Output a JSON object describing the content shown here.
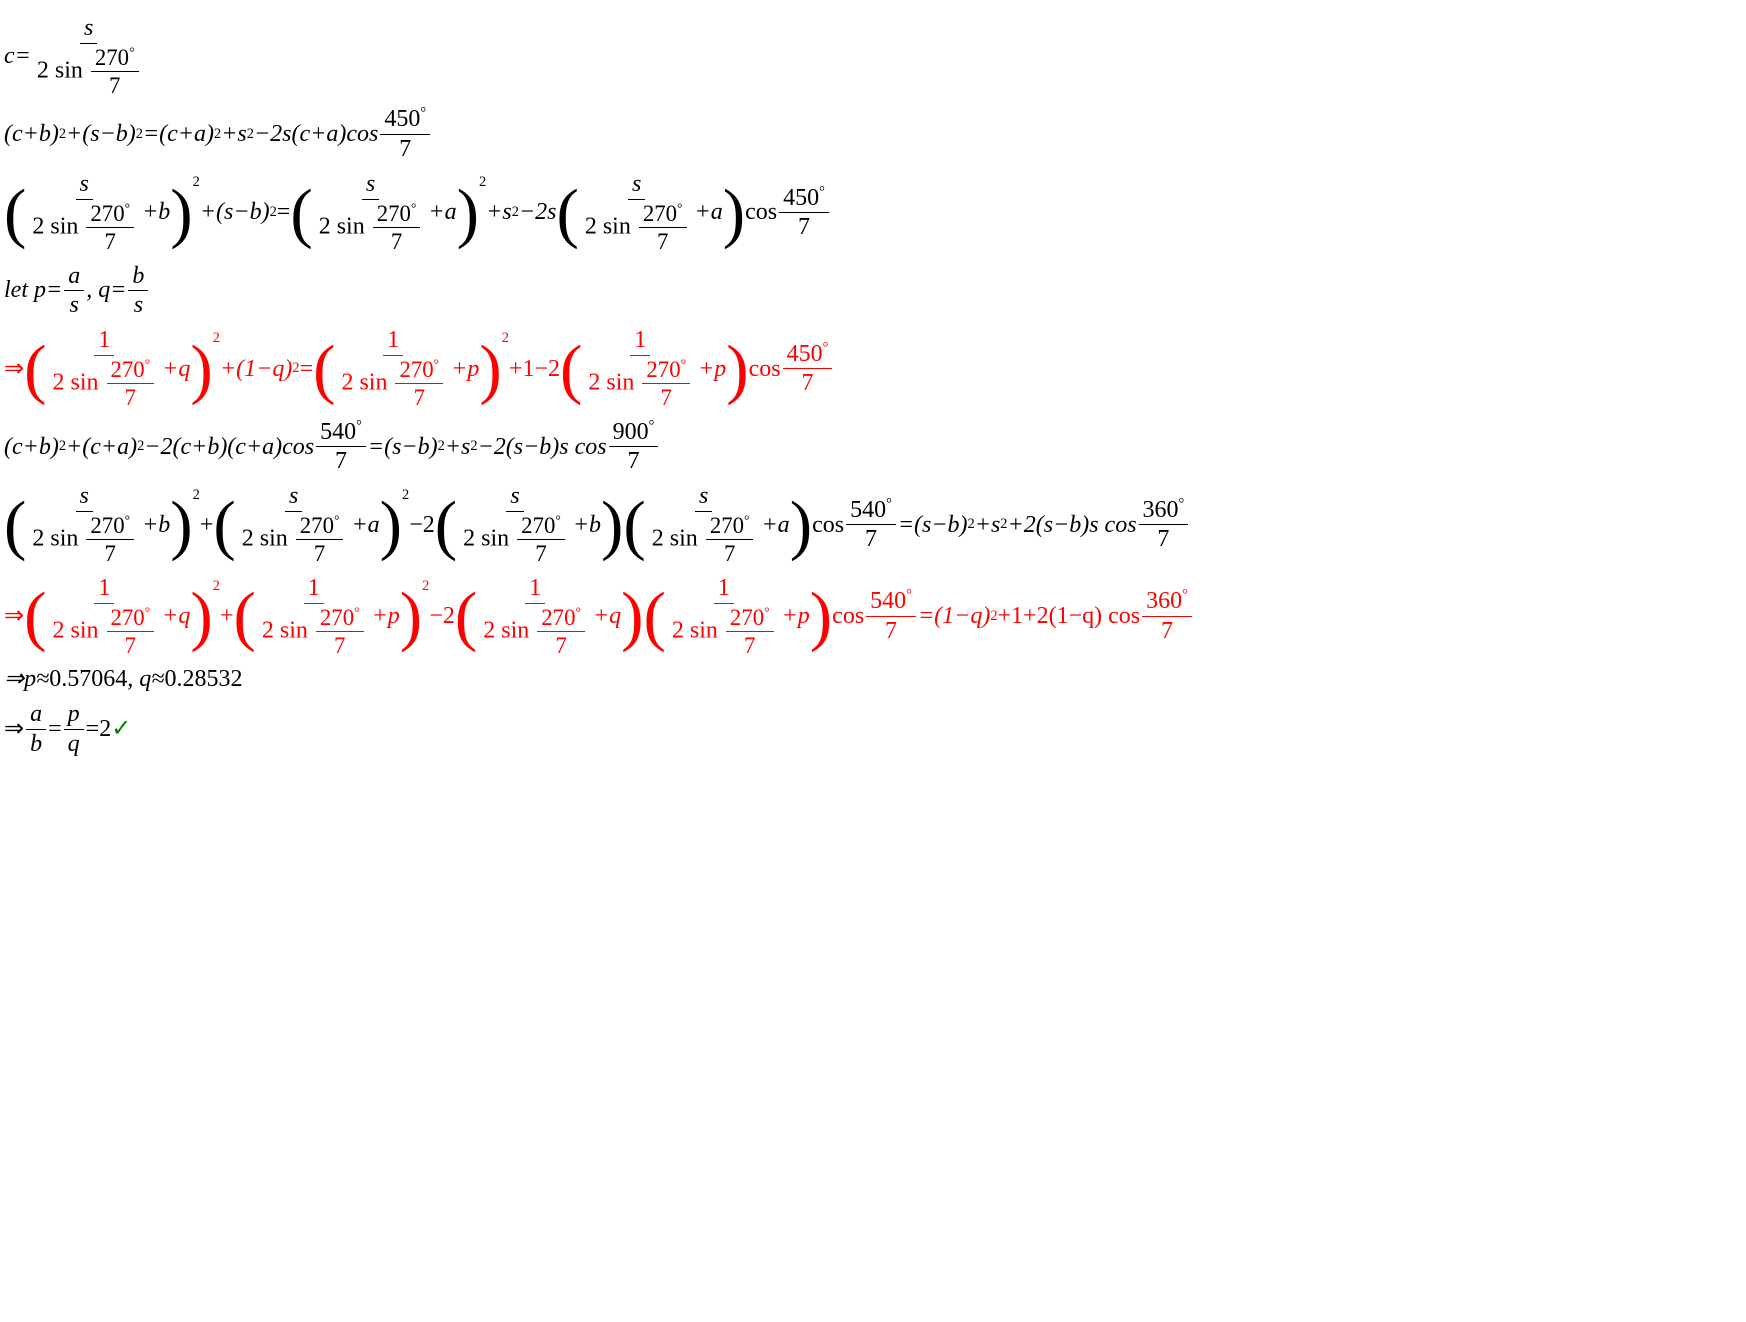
{
  "colors": {
    "text": "#000000",
    "accent": "#ff0000",
    "check": "#008000",
    "bg": "#ffffff"
  },
  "typography": {
    "family": "Times New Roman",
    "base_pt": 24,
    "italic_vars": true
  },
  "deg": "°",
  "angles": {
    "a270": "270",
    "a450": "450",
    "a540": "540",
    "a900": "900",
    "a360": "360",
    "den": "7"
  },
  "vars": {
    "c": "c",
    "s": "s",
    "a": "a",
    "b": "b",
    "p": "p",
    "q": "q"
  },
  "ops": {
    "eq": "=",
    "plus": "+",
    "minus": "−",
    "two_sin": "2 sin ",
    "cos": "cos ",
    "arrow": "⇒",
    "approx": "≈",
    "let": "let ",
    "comma": ", ",
    "one": "1",
    "two": "2",
    "s_cos": "s cos "
  },
  "line1": {
    "lhs": "c="
  },
  "line4": {
    "text": "let p=",
    "mid": ", q="
  },
  "line8": {
    "prefix": "⇒p≈",
    "pval": "0.57064",
    "mid": ", q≈",
    "qval": "0.28532"
  },
  "line9": {
    "prefix": "⇒",
    "eq2": "=2 ",
    "check": "✓"
  },
  "exp2": "2",
  "l2": {
    "t1": "(c+b)",
    "t2": "+(s−b)",
    "t3": "=(c+a)",
    "t4": "+s",
    "t5": "−2s(c+a)cos "
  },
  "l3": {
    "plus_b": "+b",
    "plus_a": "+a",
    "mid1": "+(s−b)",
    "eq": "=",
    "mid2": "+s",
    "mid3": "−2s",
    "cos": "cos "
  },
  "l5": {
    "plus_q": "+q",
    "plus_p": "+p",
    "mid1": "+(1−q)",
    "eq": "=",
    "mid2": "+1−2",
    "cos": "cos "
  },
  "l6": {
    "t1": "(c+b)",
    "t2": "+(c+a)",
    "t3": "−2(c+b)(c+a)cos ",
    "t4": "=(s−b)",
    "t5": "+s",
    "t6": "−2(s−b)s cos "
  },
  "l7a": {
    "plus_b": "+b",
    "plus_a": "+a",
    "plus": "+",
    "minus2": "−2",
    "cos": "cos ",
    "rhs1": "=(s−b)",
    "rhs2": "+s",
    "rhs3": "+2(s−b)s cos "
  },
  "l7b": {
    "plus_q": "+q",
    "plus_p": "+p",
    "plus": "+",
    "minus2": "−2",
    "cos": "cos ",
    "rhs1": "=(1−q)",
    "rhs2": "+1+2(1−q) cos "
  }
}
